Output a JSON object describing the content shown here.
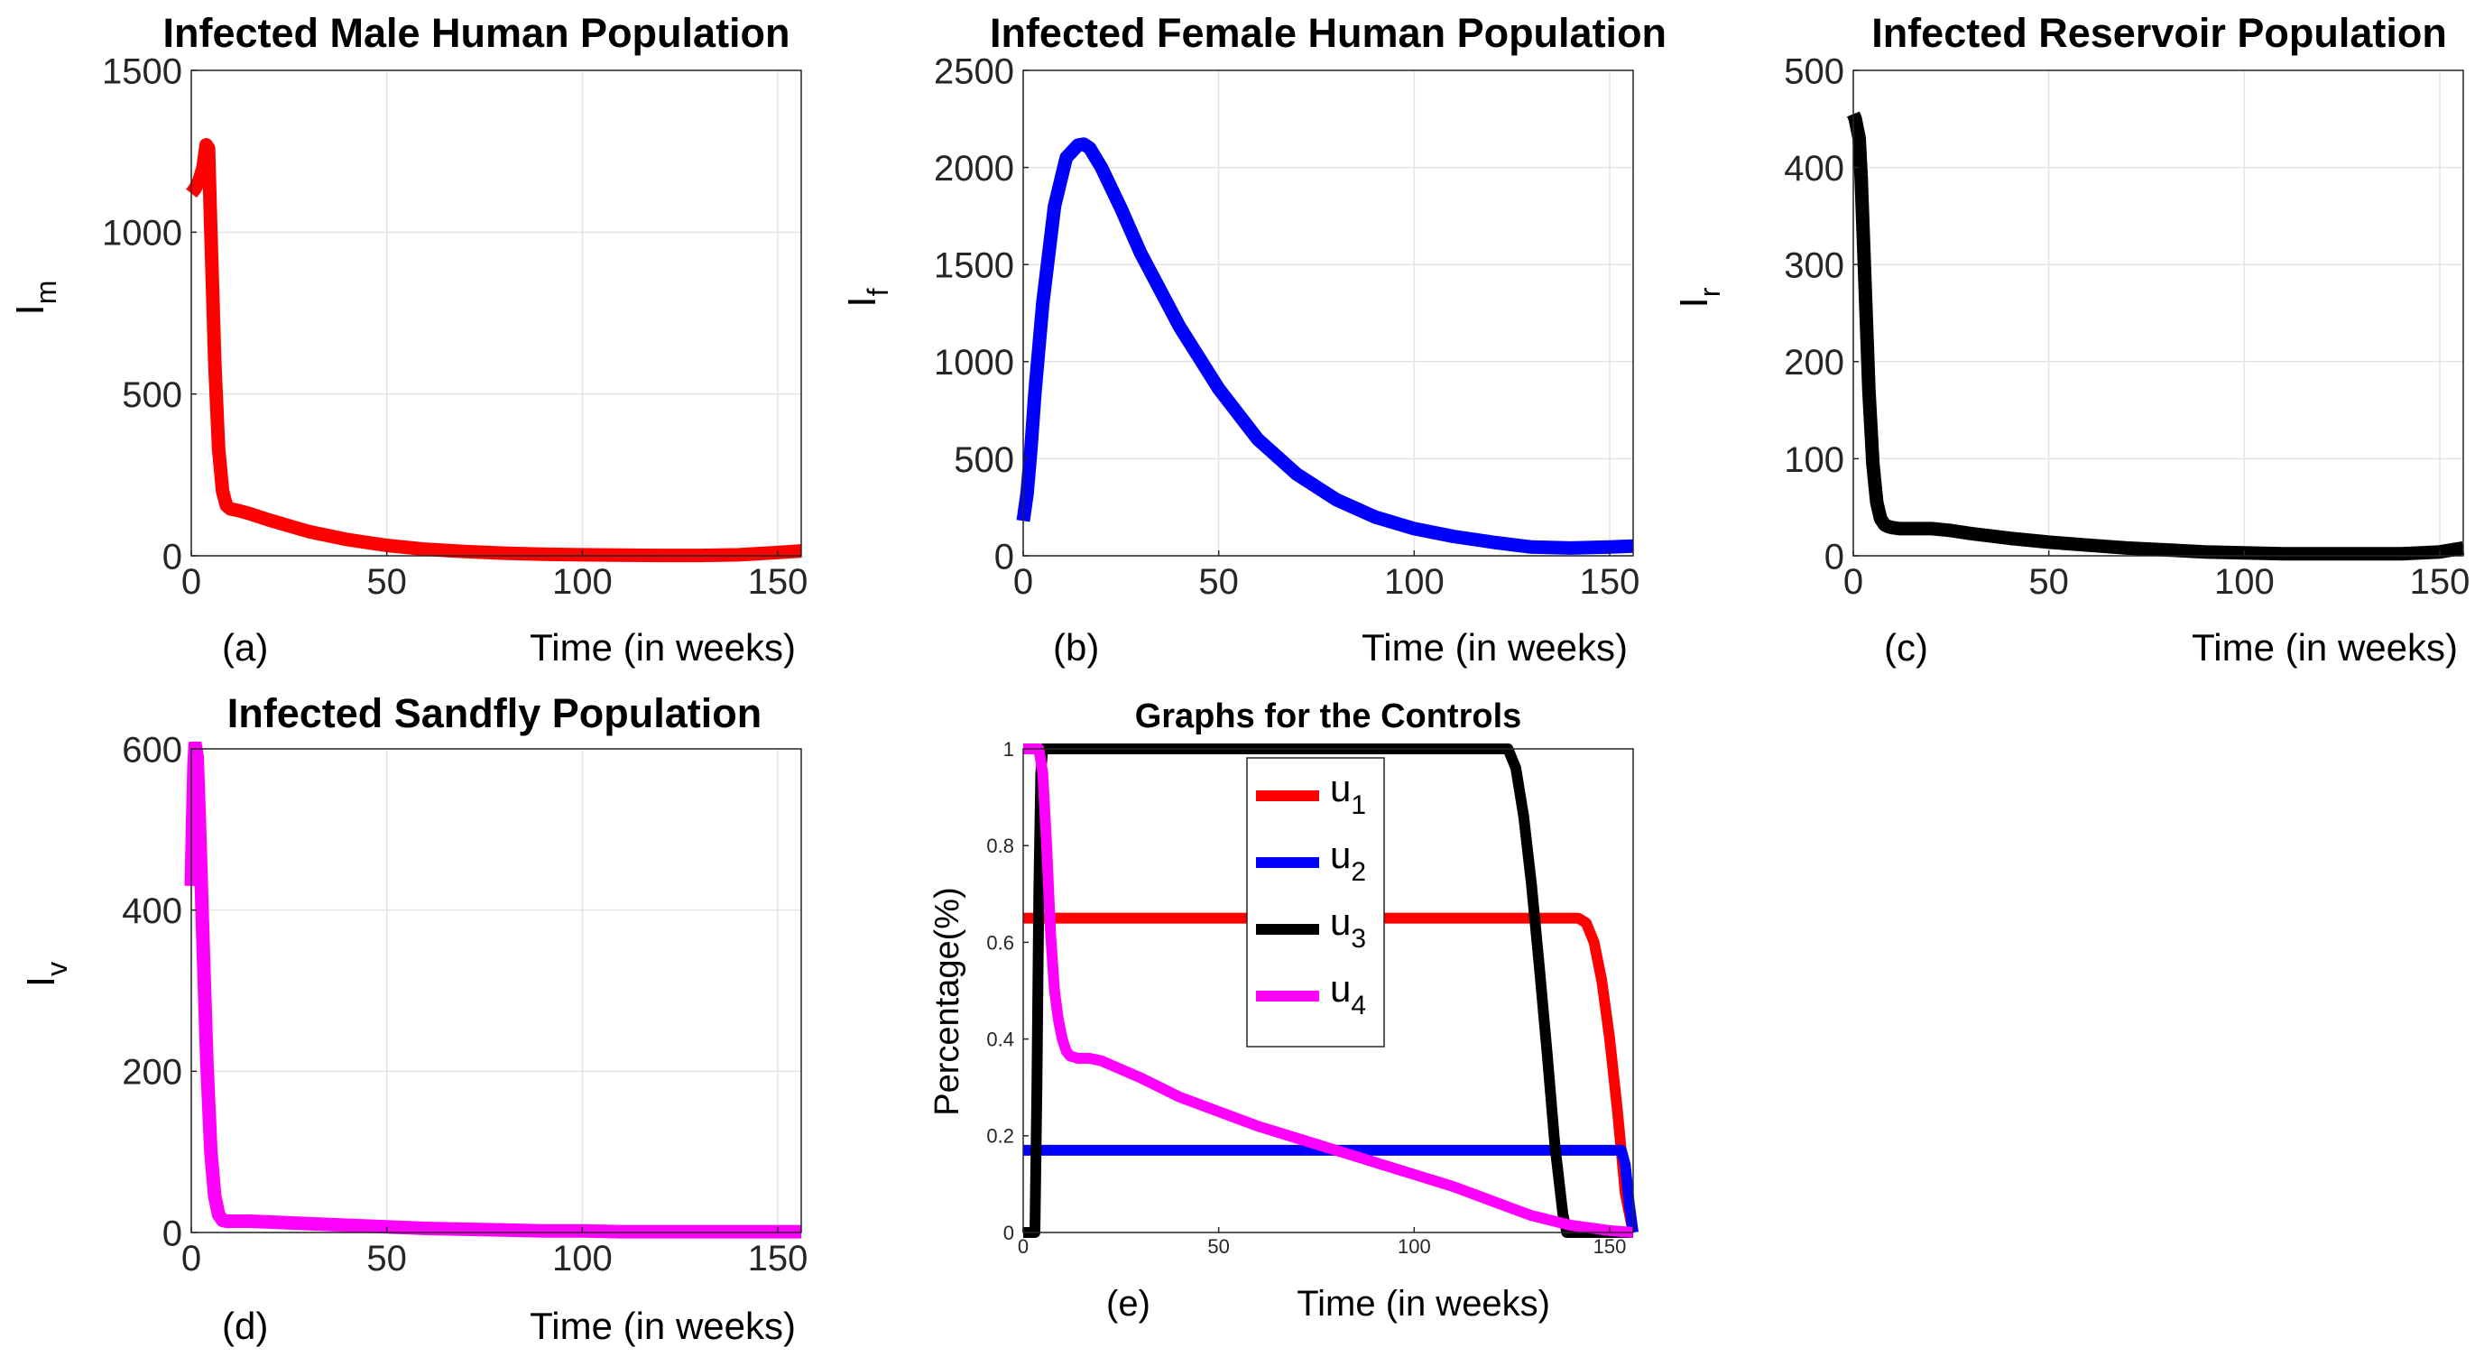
{
  "chart_data": [
    {
      "type": "line",
      "panel": "(a)",
      "title": "Infected Male Human Population",
      "xlabel": "Time (in weeks)",
      "ylabel": "I",
      "ylabel_sub": "m",
      "xlim": [
        0,
        156
      ],
      "ylim": [
        0,
        1500
      ],
      "xticks": [
        0,
        50,
        100,
        150
      ],
      "yticks": [
        0,
        500,
        1000,
        1500
      ],
      "grid": true,
      "series": [
        {
          "name": "I_m",
          "color": "#ff0000",
          "x": [
            0,
            1,
            2,
            3,
            3.8,
            4.4,
            5,
            6,
            7,
            8,
            9,
            10,
            12,
            15,
            20,
            30,
            40,
            50,
            60,
            70,
            80,
            90,
            100,
            110,
            120,
            130,
            140,
            150,
            156
          ],
          "y": [
            1120,
            1135,
            1160,
            1200,
            1270,
            1260,
            1000,
            600,
            330,
            200,
            155,
            145,
            140,
            130,
            110,
            75,
            50,
            32,
            20,
            13,
            8,
            5,
            3,
            2,
            1,
            1,
            3,
            10,
            15
          ]
        }
      ]
    },
    {
      "type": "line",
      "panel": "(b)",
      "title": "Infected Female Human Population",
      "xlabel": "Time (in weeks)",
      "ylabel": "I",
      "ylabel_sub": "f",
      "xlim": [
        0,
        156
      ],
      "ylim": [
        0,
        2500
      ],
      "xticks": [
        0,
        50,
        100,
        150
      ],
      "yticks": [
        0,
        500,
        1000,
        1500,
        2000,
        2500
      ],
      "grid": true,
      "series": [
        {
          "name": "I_f",
          "color": "#0000ff",
          "x": [
            0,
            1,
            2,
            3,
            5,
            8,
            11,
            14,
            15.5,
            17,
            20,
            25,
            30,
            40,
            50,
            60,
            70,
            80,
            90,
            100,
            110,
            120,
            130,
            140,
            150,
            156
          ],
          "y": [
            180,
            320,
            560,
            840,
            1300,
            1800,
            2050,
            2115,
            2120,
            2100,
            2000,
            1790,
            1560,
            1180,
            860,
            600,
            420,
            290,
            200,
            140,
            100,
            70,
            45,
            40,
            45,
            50
          ]
        }
      ]
    },
    {
      "type": "line",
      "panel": "(c)",
      "title": "Infected Reservoir Population",
      "xlabel": "Time (in weeks)",
      "ylabel": "I",
      "ylabel_sub": "r",
      "xlim": [
        0,
        156
      ],
      "ylim": [
        0,
        500
      ],
      "xticks": [
        0,
        50,
        100,
        150
      ],
      "yticks": [
        0,
        100,
        200,
        300,
        400,
        500
      ],
      "grid": true,
      "series": [
        {
          "name": "I_r",
          "color": "#000000",
          "x": [
            0,
            0.5,
            1,
            1.5,
            2,
            3,
            4,
            5,
            6,
            7,
            8,
            9,
            10,
            12,
            15,
            20,
            25,
            30,
            40,
            50,
            60,
            70,
            80,
            90,
            100,
            110,
            120,
            130,
            140,
            150,
            156
          ],
          "y": [
            455,
            450,
            440,
            430,
            390,
            280,
            170,
            95,
            55,
            38,
            32,
            30,
            29,
            28,
            28,
            28,
            26,
            23,
            18,
            14,
            11,
            8,
            6,
            4,
            3,
            2,
            2,
            2,
            2,
            4,
            8
          ]
        }
      ]
    },
    {
      "type": "line",
      "panel": "(d)",
      "title": "Infected Sandfly Population",
      "xlabel": "Time (in weeks)",
      "ylabel": "I",
      "ylabel_sub": "v",
      "xlim": [
        0,
        156
      ],
      "ylim": [
        0,
        600
      ],
      "xticks": [
        0,
        50,
        100,
        150
      ],
      "yticks": [
        0,
        200,
        400,
        600
      ],
      "grid": true,
      "series": [
        {
          "name": "I_v",
          "color": "#ff00ff",
          "x": [
            0,
            0.3,
            0.7,
            1,
            1.5,
            2,
            3,
            4,
            5,
            6,
            7,
            8,
            9,
            10,
            15,
            20,
            30,
            40,
            50,
            60,
            70,
            80,
            90,
            100,
            110,
            120,
            130,
            140,
            150,
            156
          ],
          "y": [
            430,
            500,
            580,
            605,
            590,
            520,
            360,
            210,
            100,
            45,
            22,
            15,
            14,
            14,
            14,
            13,
            11,
            9,
            7,
            5,
            4,
            3,
            2,
            2,
            1,
            1,
            1,
            1,
            1,
            1
          ]
        }
      ]
    },
    {
      "type": "line",
      "panel": "(e)",
      "title": "Graphs for the Controls",
      "xlabel": "Time (in weeks)",
      "ylabel": "Percentage(%)",
      "ylabel_sub": "",
      "xlim": [
        0,
        156
      ],
      "ylim": [
        0,
        1
      ],
      "xticks": [
        0,
        50,
        100,
        150
      ],
      "yticks": [
        0,
        0.2,
        0.4,
        0.6,
        0.8,
        1
      ],
      "grid": false,
      "legend": {
        "placement": "top-center"
      },
      "series": [
        {
          "name": "u",
          "sub": "1",
          "color": "#ff0000",
          "x": [
            0,
            142,
            144,
            146,
            148,
            150,
            152,
            154,
            156
          ],
          "y": [
            0.65,
            0.65,
            0.64,
            0.6,
            0.52,
            0.4,
            0.25,
            0.08,
            0
          ]
        },
        {
          "name": "u",
          "sub": "2",
          "color": "#0000ff",
          "x": [
            0,
            153,
            154,
            155,
            156
          ],
          "y": [
            0.17,
            0.17,
            0.14,
            0.06,
            0
          ]
        },
        {
          "name": "u",
          "sub": "3",
          "color": "#000000",
          "x": [
            0,
            3,
            3.5,
            4,
            4.5,
            5,
            124,
            126,
            128,
            130,
            132,
            134,
            136,
            138,
            139,
            156
          ],
          "y": [
            0,
            0,
            0.3,
            0.7,
            0.95,
            1,
            1,
            0.96,
            0.86,
            0.72,
            0.55,
            0.37,
            0.18,
            0.04,
            0,
            0
          ]
        },
        {
          "name": "u",
          "sub": "4",
          "color": "#ff00ff",
          "x": [
            0,
            4,
            5,
            6,
            7,
            8,
            9,
            10,
            11,
            12,
            14,
            17,
            20,
            30,
            40,
            50,
            60,
            70,
            80,
            90,
            100,
            110,
            120,
            130,
            140,
            150,
            156
          ],
          "y": [
            1,
            1,
            0.95,
            0.8,
            0.62,
            0.5,
            0.44,
            0.4,
            0.375,
            0.365,
            0.36,
            0.36,
            0.355,
            0.32,
            0.28,
            0.25,
            0.22,
            0.195,
            0.17,
            0.145,
            0.12,
            0.095,
            0.065,
            0.035,
            0.015,
            0.004,
            0
          ]
        }
      ]
    }
  ]
}
